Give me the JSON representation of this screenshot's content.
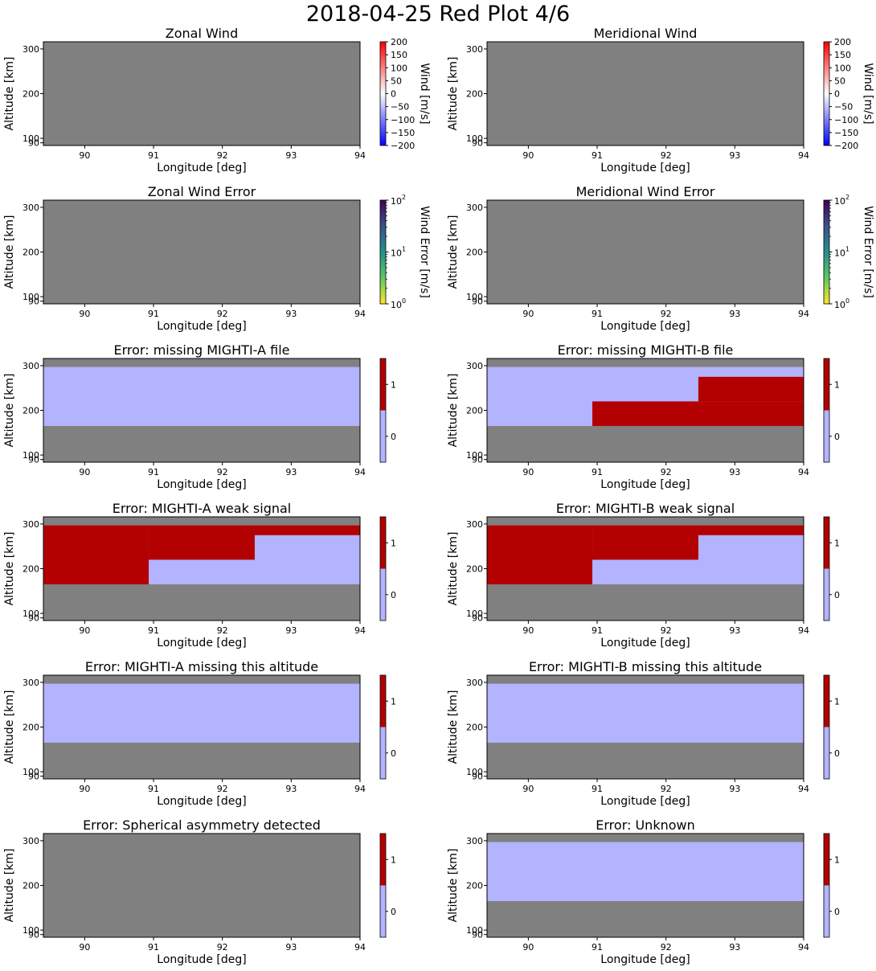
{
  "suptitle": "2018-04-25 Red Plot 4/6",
  "shared_axes": {
    "xlabel": "Longitude [deg]",
    "ylabel": "Altitude [km]",
    "xlim": [
      89.4,
      94.0
    ],
    "x_ticks": [
      "90",
      "91",
      "92",
      "93",
      "94"
    ],
    "ylim": [
      84,
      316
    ],
    "y_ticks": [
      "300",
      "200",
      "100",
      "90"
    ]
  },
  "colors": {
    "missing": "#808080",
    "flag_0": "#b3b3ff",
    "flag_1": "#b30000"
  },
  "chart_data": [
    {
      "type": "heatmap",
      "title": "Zonal Wind",
      "content": "no data (all missing)",
      "colorbar": {
        "label": "Wind [m/s]",
        "scale": "linear",
        "range": [
          -200,
          200
        ],
        "cmap": "bwr",
        "ticks": [
          "200",
          "150",
          "100",
          "50",
          "0",
          "−50",
          "−100",
          "−150",
          "−200"
        ]
      }
    },
    {
      "type": "heatmap",
      "title": "Meridional Wind",
      "content": "no data (all missing)",
      "colorbar": {
        "label": "Wind [m/s]",
        "scale": "linear",
        "range": [
          -200,
          200
        ],
        "cmap": "bwr",
        "ticks": [
          "200",
          "150",
          "100",
          "50",
          "0",
          "−50",
          "−100",
          "−150",
          "−200"
        ]
      }
    },
    {
      "type": "heatmap",
      "title": "Zonal Wind Error",
      "content": "no data (all missing)",
      "colorbar": {
        "label": "Wind Error [m/s]",
        "scale": "log",
        "range": [
          1,
          100
        ],
        "cmap": "viridis_r",
        "ticks": [
          "10",
          "10",
          "10"
        ],
        "tick_exponents": [
          "2",
          "1",
          "0"
        ]
      }
    },
    {
      "type": "heatmap",
      "title": "Meridional Wind Error",
      "content": "no data (all missing)",
      "colorbar": {
        "label": "Wind Error [m/s]",
        "scale": "log",
        "range": [
          1,
          100
        ],
        "cmap": "viridis_r",
        "ticks": [
          "10",
          "10",
          "10"
        ],
        "tick_exponents": [
          "2",
          "1",
          "0"
        ]
      }
    },
    {
      "type": "heatmap",
      "title": "Error: missing MIGHTI-A file",
      "colorbar": {
        "range": [
          -0.5,
          1.5
        ],
        "ticks": [
          "1",
          "0"
        ]
      },
      "cells": [
        {
          "lon": [
            89.4,
            94.0
          ],
          "alt": [
            165,
            297
          ],
          "value": 0
        }
      ]
    },
    {
      "type": "heatmap",
      "title": "Error: missing MIGHTI-B file",
      "colorbar": {
        "range": [
          -0.5,
          1.5
        ],
        "ticks": [
          "1",
          "0"
        ]
      },
      "cells": [
        {
          "lon": [
            89.4,
            94.0
          ],
          "alt": [
            165,
            297
          ],
          "value": 0
        },
        {
          "lon": [
            90.93,
            94.0
          ],
          "alt": [
            165,
            220
          ],
          "value": 1
        },
        {
          "lon": [
            92.47,
            94.0
          ],
          "alt": [
            220,
            275
          ],
          "value": 1
        }
      ]
    },
    {
      "type": "heatmap",
      "title": "Error: MIGHTI-A weak signal",
      "colorbar": {
        "range": [
          -0.5,
          1.5
        ],
        "ticks": [
          "1",
          "0"
        ]
      },
      "cells": [
        {
          "lon": [
            89.4,
            94.0
          ],
          "alt": [
            165,
            297
          ],
          "value": 0
        },
        {
          "lon": [
            92.47,
            94.0
          ],
          "alt": [
            275,
            297
          ],
          "value": 1
        },
        {
          "lon": [
            90.93,
            92.47
          ],
          "alt": [
            220,
            297
          ],
          "value": 1
        },
        {
          "lon": [
            89.4,
            90.93
          ],
          "alt": [
            165,
            297
          ],
          "value": 1
        }
      ]
    },
    {
      "type": "heatmap",
      "title": "Error: MIGHTI-B weak signal",
      "colorbar": {
        "range": [
          -0.5,
          1.5
        ],
        "ticks": [
          "1",
          "0"
        ]
      },
      "cells": [
        {
          "lon": [
            89.4,
            94.0
          ],
          "alt": [
            165,
            297
          ],
          "value": 0
        },
        {
          "lon": [
            92.47,
            94.0
          ],
          "alt": [
            275,
            297
          ],
          "value": 1
        },
        {
          "lon": [
            90.93,
            92.47
          ],
          "alt": [
            220,
            297
          ],
          "value": 1
        },
        {
          "lon": [
            89.4,
            90.93
          ],
          "alt": [
            165,
            297
          ],
          "value": 1
        }
      ]
    },
    {
      "type": "heatmap",
      "title": "Error: MIGHTI-A missing this altitude",
      "colorbar": {
        "range": [
          -0.5,
          1.5
        ],
        "ticks": [
          "1",
          "0"
        ]
      },
      "cells": [
        {
          "lon": [
            89.4,
            94.0
          ],
          "alt": [
            165,
            297
          ],
          "value": 0
        }
      ]
    },
    {
      "type": "heatmap",
      "title": "Error: MIGHTI-B missing this altitude",
      "colorbar": {
        "range": [
          -0.5,
          1.5
        ],
        "ticks": [
          "1",
          "0"
        ]
      },
      "cells": [
        {
          "lon": [
            89.4,
            94.0
          ],
          "alt": [
            165,
            297
          ],
          "value": 0
        }
      ]
    },
    {
      "type": "heatmap",
      "title": "Error: Spherical asymmetry detected",
      "content": "no data (all missing)",
      "colorbar": {
        "range": [
          -0.5,
          1.5
        ],
        "ticks": [
          "1",
          "0"
        ]
      }
    },
    {
      "type": "heatmap",
      "title": "Error: Unknown",
      "colorbar": {
        "range": [
          -0.5,
          1.5
        ],
        "ticks": [
          "1",
          "0"
        ]
      },
      "cells": [
        {
          "lon": [
            89.4,
            94.0
          ],
          "alt": [
            165,
            297
          ],
          "value": 0
        }
      ]
    }
  ]
}
